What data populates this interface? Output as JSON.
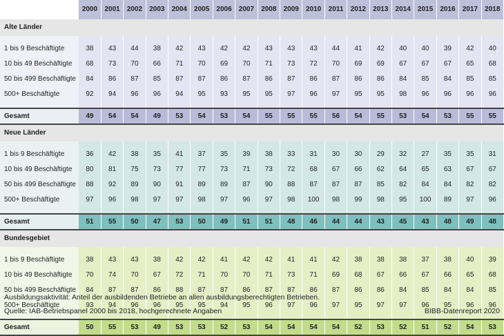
{
  "header": {
    "years": [
      "2000",
      "2001",
      "2002",
      "2003",
      "2004",
      "2005",
      "2006",
      "2007",
      "2008",
      "2009",
      "2010",
      "2011",
      "2012",
      "2013",
      "2014",
      "2015",
      "2016",
      "2017",
      "2018"
    ]
  },
  "sections": [
    {
      "title": "Alte Länder",
      "rows": [
        {
          "label": "1 bis 9 Beschäftigte",
          "values": [
            38,
            43,
            44,
            38,
            42,
            43,
            42,
            42,
            43,
            43,
            43,
            44,
            41,
            42,
            40,
            40,
            39,
            42,
            40
          ]
        },
        {
          "label": "10 bis 49 Beschäftigte",
          "values": [
            68,
            73,
            70,
            66,
            71,
            70,
            69,
            70,
            71,
            73,
            72,
            70,
            69,
            69,
            67,
            67,
            67,
            65,
            68
          ]
        },
        {
          "label": "50 bis 499 Beschäftigte",
          "values": [
            84,
            86,
            87,
            85,
            87,
            87,
            86,
            87,
            86,
            87,
            86,
            87,
            86,
            86,
            84,
            85,
            84,
            85,
            85
          ]
        },
        {
          "label": "500+ Beschäftigte",
          "values": [
            92,
            94,
            96,
            96,
            94,
            95,
            93,
            95,
            95,
            97,
            96,
            97,
            95,
            95,
            98,
            96,
            96,
            96,
            96
          ]
        }
      ],
      "total": {
        "label": "Gesamt",
        "values": [
          49,
          54,
          54,
          49,
          53,
          54,
          53,
          54,
          55,
          55,
          55,
          56,
          54,
          55,
          53,
          54,
          53,
          55,
          55
        ]
      }
    },
    {
      "title": "Neue Länder",
      "rows": [
        {
          "label": "1 bis 9 Beschäftigte",
          "values": [
            36,
            42,
            38,
            35,
            41,
            37,
            35,
            39,
            38,
            33,
            31,
            30,
            30,
            29,
            32,
            27,
            35,
            35,
            31
          ]
        },
        {
          "label": "10 bis 49 Beschäftigte",
          "values": [
            80,
            81,
            75,
            73,
            77,
            77,
            73,
            71,
            73,
            72,
            68,
            67,
            66,
            62,
            64,
            65,
            63,
            67,
            67
          ]
        },
        {
          "label": "50 bis 499 Beschäftigte",
          "values": [
            88,
            92,
            89,
            90,
            91,
            89,
            89,
            87,
            90,
            88,
            87,
            87,
            87,
            85,
            82,
            84,
            84,
            82,
            82
          ]
        },
        {
          "label": "500+ Beschäftigte",
          "values": [
            97,
            96,
            98,
            97,
            97,
            98,
            97,
            96,
            97,
            98,
            100,
            98,
            99,
            98,
            95,
            100,
            89,
            97,
            96
          ]
        }
      ],
      "total": {
        "label": "Gesamt",
        "values": [
          51,
          55,
          50,
          47,
          53,
          50,
          49,
          51,
          51,
          48,
          46,
          44,
          44,
          43,
          45,
          43,
          48,
          49,
          48
        ]
      }
    },
    {
      "title": "Bundesgebiet",
      "rows": [
        {
          "label": "1 bis 9 Beschäftigte",
          "values": [
            38,
            43,
            43,
            38,
            42,
            42,
            41,
            42,
            42,
            41,
            41,
            42,
            38,
            38,
            38,
            37,
            38,
            40,
            39
          ]
        },
        {
          "label": "10 bis 49 Beschäftigte",
          "values": [
            70,
            74,
            70,
            67,
            72,
            71,
            70,
            70,
            71,
            73,
            71,
            69,
            68,
            67,
            66,
            67,
            66,
            65,
            68
          ]
        },
        {
          "label": "50 bis 499 Beschäftigte",
          "values": [
            84,
            87,
            87,
            86,
            88,
            87,
            87,
            86,
            87,
            87,
            86,
            87,
            86,
            86,
            84,
            85,
            84,
            84,
            85
          ]
        },
        {
          "label": "500+ Beschäftigte",
          "values": [
            93,
            94,
            96,
            96,
            95,
            95,
            94,
            95,
            96,
            97,
            96,
            97,
            95,
            97,
            97,
            96,
            95,
            96,
            96
          ]
        }
      ],
      "total": {
        "label": "Gesamt",
        "values": [
          50,
          55,
          53,
          49,
          53,
          53,
          52,
          53,
          54,
          54,
          54,
          54,
          52,
          53,
          52,
          51,
          52,
          54,
          53
        ]
      }
    }
  ],
  "footnote": "Ausbildungsaktivität: Anteil der ausbildenden Betriebe an allen ausbildungsberechtigten Betrieben.",
  "source": "Quelle: IAB-Betriebspanel 2000 bis 2018, hochgerechnete Angaben",
  "publisher": "BIBB-Datenreport 2020"
}
